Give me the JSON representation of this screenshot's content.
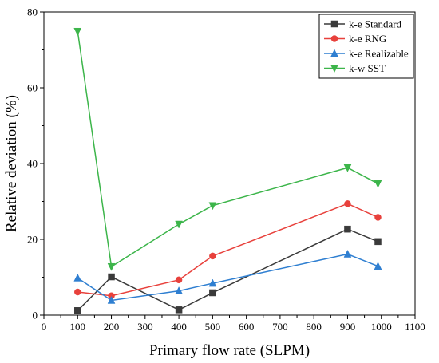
{
  "chart_data": {
    "type": "line",
    "xlabel": "Primary flow rate (SLPM)",
    "ylabel": "Relative deviation (%)",
    "xlim": [
      0,
      1100
    ],
    "ylim": [
      0,
      80
    ],
    "x_ticks": [
      0,
      100,
      200,
      300,
      400,
      500,
      600,
      700,
      800,
      900,
      1000,
      1100
    ],
    "y_ticks": [
      0,
      20,
      40,
      60,
      80
    ],
    "grid": false,
    "legend_position": "top-right",
    "x": [
      100,
      200,
      400,
      500,
      900,
      990
    ],
    "series": [
      {
        "name": "k-e Standard",
        "marker": "square",
        "color": "#3a3a3a",
        "values": [
          1.2,
          10.1,
          1.4,
          5.9,
          22.7,
          19.4
        ]
      },
      {
        "name": "k-e RNG",
        "marker": "circle",
        "color": "#e8413c",
        "values": [
          6.1,
          5.1,
          9.3,
          15.6,
          29.4,
          25.8
        ]
      },
      {
        "name": "k-e Realizable",
        "marker": "triangle-up",
        "color": "#2f7fd1",
        "values": [
          9.8,
          3.9,
          6.4,
          8.4,
          16.1,
          12.9
        ]
      },
      {
        "name": "k-w SST",
        "marker": "triangle-down",
        "color": "#3cb54a",
        "values": [
          74.9,
          12.8,
          24.0,
          28.9,
          38.9,
          34.7
        ]
      }
    ]
  }
}
